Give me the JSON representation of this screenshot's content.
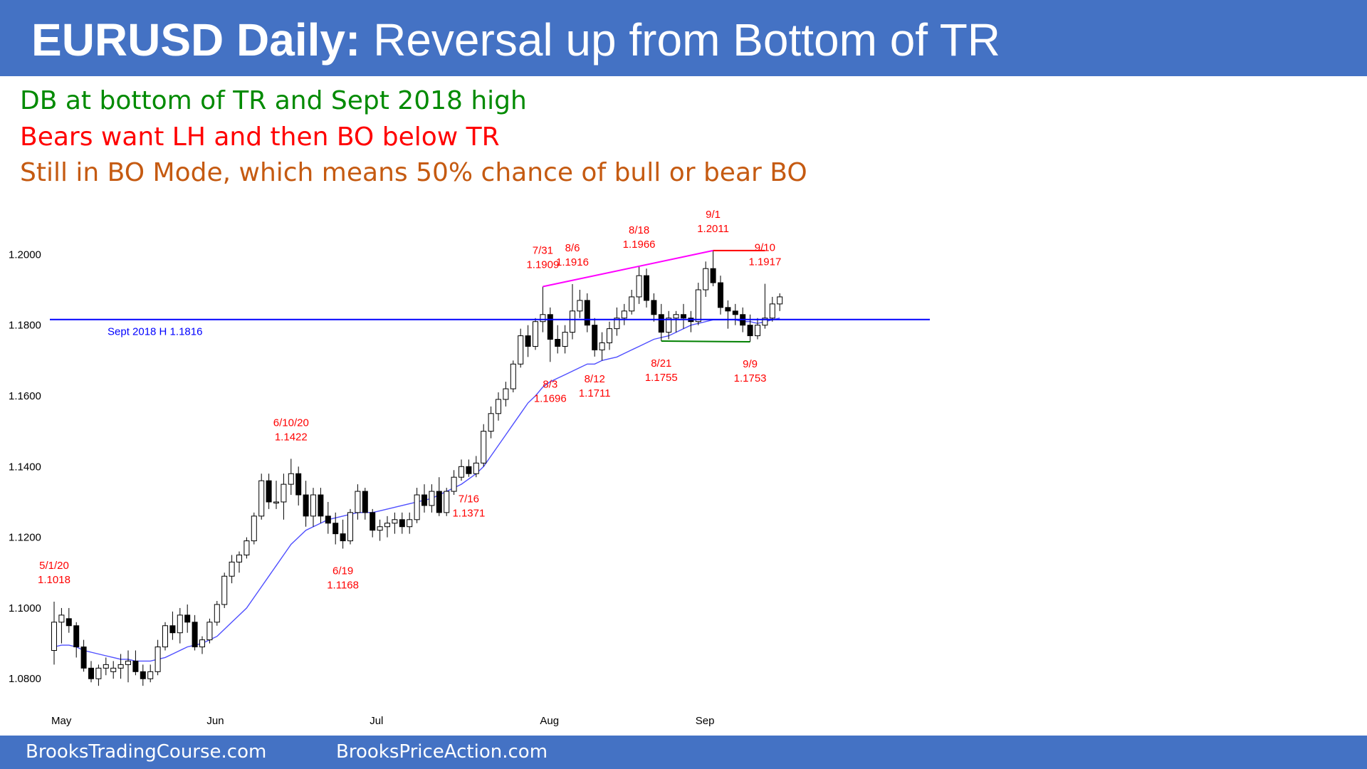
{
  "header": {
    "title_bold": "EURUSD Daily:",
    "title_rest": " Reversal up from Bottom of TR",
    "background": "#4472c4"
  },
  "notes": [
    {
      "text": "DB at bottom of TR and Sept 2018 high",
      "color": "#008a00"
    },
    {
      "text": "Bears want LH and then BO below TR",
      "color": "#ff0000"
    },
    {
      "text": "Still in BO Mode, which means 50% chance of bull or bear BO",
      "color": "#c55a11"
    }
  ],
  "footer": {
    "left": "BrooksTradingCourse.com",
    "right": "BrooksPriceAction.com"
  },
  "chart_data": {
    "type": "candlestick",
    "instrument": "EURUSD",
    "timeframe": "Daily",
    "ylim": [
      1.073,
      1.2045
    ],
    "yticks": [
      1.08,
      1.1,
      1.12,
      1.14,
      1.16,
      1.18,
      1.2
    ],
    "ytick_labels": [
      "1.0800",
      "1.1000",
      "1.1200",
      "1.1400",
      "1.1600",
      "1.1800",
      "1.2000"
    ],
    "xticks": [
      {
        "label": "May",
        "bar": 0
      },
      {
        "label": "Jun",
        "bar": 21
      },
      {
        "label": "Jul",
        "bar": 43
      },
      {
        "label": "Aug",
        "bar": 66
      },
      {
        "label": "Sep",
        "bar": 87
      }
    ],
    "ohlc": [
      [
        1.088,
        1.1018,
        1.084,
        1.096
      ],
      [
        1.096,
        1.1,
        1.09,
        1.098
      ],
      [
        1.097,
        1.1,
        1.093,
        1.095
      ],
      [
        1.095,
        1.096,
        1.086,
        1.089
      ],
      [
        1.089,
        1.091,
        1.082,
        1.083
      ],
      [
        1.083,
        1.085,
        1.079,
        1.08
      ],
      [
        1.08,
        1.084,
        1.078,
        1.083
      ],
      [
        1.083,
        1.086,
        1.081,
        1.084
      ],
      [
        1.082,
        1.085,
        1.08,
        1.083
      ],
      [
        1.083,
        1.087,
        1.08,
        1.084
      ],
      [
        1.084,
        1.088,
        1.079,
        1.085
      ],
      [
        1.085,
        1.088,
        1.081,
        1.082
      ],
      [
        1.082,
        1.084,
        1.078,
        1.08
      ],
      [
        1.08,
        1.084,
        1.079,
        1.082
      ],
      [
        1.082,
        1.091,
        1.081,
        1.089
      ],
      [
        1.089,
        1.096,
        1.088,
        1.095
      ],
      [
        1.095,
        1.099,
        1.091,
        1.093
      ],
      [
        1.093,
        1.1,
        1.09,
        1.098
      ],
      [
        1.098,
        1.101,
        1.093,
        1.096
      ],
      [
        1.096,
        1.098,
        1.088,
        1.089
      ],
      [
        1.089,
        1.092,
        1.087,
        1.091
      ],
      [
        1.091,
        1.097,
        1.09,
        1.096
      ],
      [
        1.096,
        1.102,
        1.095,
        1.101
      ],
      [
        1.101,
        1.11,
        1.1,
        1.109
      ],
      [
        1.109,
        1.115,
        1.107,
        1.113
      ],
      [
        1.113,
        1.116,
        1.11,
        1.115
      ],
      [
        1.115,
        1.12,
        1.114,
        1.119
      ],
      [
        1.119,
        1.127,
        1.118,
        1.126
      ],
      [
        1.126,
        1.138,
        1.125,
        1.136
      ],
      [
        1.136,
        1.138,
        1.128,
        1.13
      ],
      [
        1.13,
        1.136,
        1.128,
        1.13
      ],
      [
        1.13,
        1.138,
        1.125,
        1.135
      ],
      [
        1.135,
        1.1422,
        1.132,
        1.138
      ],
      [
        1.138,
        1.14,
        1.129,
        1.132
      ],
      [
        1.132,
        1.136,
        1.123,
        1.126
      ],
      [
        1.126,
        1.134,
        1.123,
        1.132
      ],
      [
        1.132,
        1.134,
        1.124,
        1.126
      ],
      [
        1.126,
        1.13,
        1.121,
        1.124
      ],
      [
        1.124,
        1.127,
        1.118,
        1.121
      ],
      [
        1.121,
        1.125,
        1.1168,
        1.119
      ],
      [
        1.119,
        1.128,
        1.118,
        1.127
      ],
      [
        1.127,
        1.135,
        1.125,
        1.133
      ],
      [
        1.133,
        1.134,
        1.125,
        1.127
      ],
      [
        1.127,
        1.128,
        1.12,
        1.122
      ],
      [
        1.122,
        1.125,
        1.119,
        1.123
      ],
      [
        1.123,
        1.126,
        1.12,
        1.124
      ],
      [
        1.124,
        1.127,
        1.121,
        1.125
      ],
      [
        1.125,
        1.127,
        1.121,
        1.123
      ],
      [
        1.123,
        1.127,
        1.121,
        1.125
      ],
      [
        1.125,
        1.134,
        1.124,
        1.132
      ],
      [
        1.132,
        1.135,
        1.127,
        1.129
      ],
      [
        1.129,
        1.135,
        1.127,
        1.133
      ],
      [
        1.133,
        1.137,
        1.126,
        1.127
      ],
      [
        1.127,
        1.134,
        1.126,
        1.133
      ],
      [
        1.133,
        1.139,
        1.132,
        1.137
      ],
      [
        1.137,
        1.142,
        1.136,
        1.14
      ],
      [
        1.14,
        1.142,
        1.1371,
        1.138
      ],
      [
        1.138,
        1.143,
        1.137,
        1.141
      ],
      [
        1.141,
        1.152,
        1.14,
        1.15
      ],
      [
        1.15,
        1.157,
        1.148,
        1.155
      ],
      [
        1.155,
        1.161,
        1.153,
        1.159
      ],
      [
        1.159,
        1.164,
        1.157,
        1.162
      ],
      [
        1.162,
        1.17,
        1.161,
        1.169
      ],
      [
        1.169,
        1.179,
        1.168,
        1.177
      ],
      [
        1.177,
        1.18,
        1.171,
        1.174
      ],
      [
        1.174,
        1.182,
        1.173,
        1.181
      ],
      [
        1.181,
        1.1909,
        1.178,
        1.183
      ],
      [
        1.183,
        1.185,
        1.1696,
        1.176
      ],
      [
        1.176,
        1.18,
        1.172,
        1.174
      ],
      [
        1.174,
        1.18,
        1.172,
        1.178
      ],
      [
        1.178,
        1.1916,
        1.176,
        1.184
      ],
      [
        1.184,
        1.19,
        1.182,
        1.187
      ],
      [
        1.187,
        1.189,
        1.178,
        1.18
      ],
      [
        1.18,
        1.182,
        1.1711,
        1.173
      ],
      [
        1.173,
        1.178,
        1.17,
        1.175
      ],
      [
        1.175,
        1.181,
        1.173,
        1.179
      ],
      [
        1.179,
        1.185,
        1.177,
        1.182
      ],
      [
        1.182,
        1.186,
        1.18,
        1.184
      ],
      [
        1.184,
        1.19,
        1.183,
        1.188
      ],
      [
        1.188,
        1.1966,
        1.186,
        1.194
      ],
      [
        1.194,
        1.196,
        1.185,
        1.187
      ],
      [
        1.187,
        1.189,
        1.181,
        1.183
      ],
      [
        1.183,
        1.186,
        1.1755,
        1.178
      ],
      [
        1.178,
        1.184,
        1.176,
        1.182
      ],
      [
        1.182,
        1.184,
        1.178,
        1.183
      ],
      [
        1.183,
        1.186,
        1.179,
        1.182
      ],
      [
        1.182,
        1.184,
        1.178,
        1.181
      ],
      [
        1.181,
        1.192,
        1.18,
        1.19
      ],
      [
        1.19,
        1.198,
        1.188,
        1.196
      ],
      [
        1.196,
        1.2011,
        1.191,
        1.192
      ],
      [
        1.192,
        1.194,
        1.183,
        1.185
      ],
      [
        1.185,
        1.187,
        1.179,
        1.184
      ],
      [
        1.184,
        1.186,
        1.18,
        1.183
      ],
      [
        1.183,
        1.185,
        1.178,
        1.18
      ],
      [
        1.18,
        1.183,
        1.1753,
        1.177
      ],
      [
        1.177,
        1.182,
        1.176,
        1.18
      ],
      [
        1.18,
        1.1917,
        1.179,
        1.182
      ],
      [
        1.182,
        1.188,
        1.181,
        1.186
      ],
      [
        1.186,
        1.189,
        1.184,
        1.188
      ]
    ],
    "moving_average": [
      1.089,
      1.0895,
      1.0895,
      1.089,
      1.088,
      1.0875,
      1.087,
      1.0865,
      1.086,
      1.0855,
      1.0855,
      1.085,
      1.085,
      1.085,
      1.0855,
      1.086,
      1.087,
      1.088,
      1.089,
      1.0895,
      1.09,
      1.091,
      1.092,
      1.094,
      1.096,
      1.098,
      1.1,
      1.103,
      1.106,
      1.109,
      1.112,
      1.115,
      1.118,
      1.12,
      1.122,
      1.123,
      1.124,
      1.125,
      1.1255,
      1.126,
      1.1265,
      1.127,
      1.127,
      1.127,
      1.1275,
      1.128,
      1.1285,
      1.129,
      1.1295,
      1.13,
      1.1305,
      1.131,
      1.132,
      1.133,
      1.134,
      1.135,
      1.1365,
      1.138,
      1.14,
      1.143,
      1.146,
      1.149,
      1.152,
      1.155,
      1.158,
      1.16,
      1.1625,
      1.164,
      1.165,
      1.166,
      1.167,
      1.168,
      1.169,
      1.169,
      1.17,
      1.1705,
      1.171,
      1.172,
      1.173,
      1.174,
      1.175,
      1.176,
      1.1765,
      1.177,
      1.178,
      1.179,
      1.18,
      1.1805,
      1.181,
      1.1815,
      1.1815,
      1.1815,
      1.1815,
      1.181,
      1.181,
      1.1805,
      1.181,
      1.1815,
      1.182
    ],
    "horizontal_line": {
      "label": "Sept 2018 H 1.1816",
      "value": 1.1816,
      "color": "#0000ff"
    },
    "trendlines": [
      {
        "from_bar": 66,
        "from_value": 1.1909,
        "to_bar": 89,
        "to_value": 1.2011,
        "color": "#ff00ff"
      },
      {
        "from_bar": 89,
        "from_value": 1.2011,
        "to_bar": 96,
        "to_value": 1.2011,
        "color": "#ff0000"
      },
      {
        "from_bar": 82,
        "from_value": 1.1755,
        "to_bar": 94,
        "to_value": 1.1753,
        "color": "#008000"
      }
    ],
    "annotations": [
      {
        "date": "5/1/20",
        "value": "1.1018",
        "bar": 0,
        "pos": "above"
      },
      {
        "date": "6/10/20",
        "value": "1.1422",
        "bar": 32,
        "pos": "above"
      },
      {
        "date": "6/19",
        "value": "1.1168",
        "bar": 39,
        "pos": "below"
      },
      {
        "date": "7/16",
        "value": "1.1371",
        "bar": 56,
        "pos": "below"
      },
      {
        "date": "7/31",
        "value": "1.1909",
        "bar": 66,
        "pos": "above"
      },
      {
        "date": "8/3",
        "value": "1.1696",
        "bar": 67,
        "pos": "below"
      },
      {
        "date": "8/6",
        "value": "1.1916",
        "bar": 70,
        "pos": "above"
      },
      {
        "date": "8/12",
        "value": "1.1711",
        "bar": 73,
        "pos": "below"
      },
      {
        "date": "8/18",
        "value": "1.1966",
        "bar": 79,
        "pos": "above"
      },
      {
        "date": "8/21",
        "value": "1.1755",
        "bar": 82,
        "pos": "below"
      },
      {
        "date": "9/1",
        "value": "1.2011",
        "bar": 89,
        "pos": "above"
      },
      {
        "date": "9/9",
        "value": "1.1753",
        "bar": 94,
        "pos": "below"
      },
      {
        "date": "9/10",
        "value": "1.1917",
        "bar": 96,
        "pos": "above"
      }
    ],
    "colors": {
      "up": "#ffffff",
      "down": "#000000",
      "ma": "#4f4fff"
    }
  }
}
